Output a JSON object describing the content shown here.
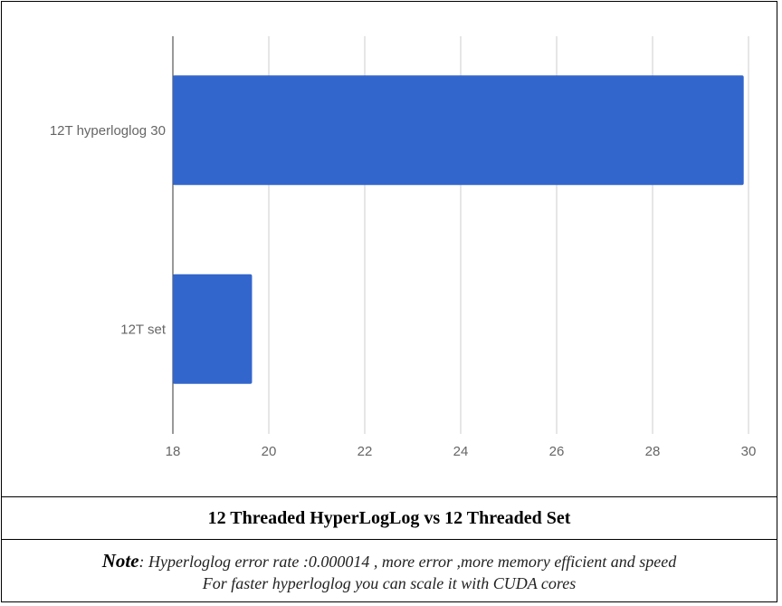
{
  "chart_data": {
    "type": "bar",
    "orientation": "horizontal",
    "categories": [
      "12T hyperloglog 30",
      "12T set"
    ],
    "values": [
      29.9,
      19.65
    ],
    "xlim": [
      18,
      30
    ],
    "xticks": [
      "18",
      "20",
      "22",
      "24",
      "26",
      "28",
      "30"
    ],
    "title": "",
    "xlabel": "",
    "ylabel": "",
    "grid": "vertical",
    "bar_color": "#3366cc",
    "grid_color": "#cccccc"
  },
  "caption": "12 Threaded HyperLogLog vs 12 Threaded Set",
  "note": {
    "key": "Note",
    "line1": ": Hyperloglog error rate :0.000014 , more error ,more memory efficient and  speed",
    "line2": "For faster hyperloglog you can scale it with CUDA cores"
  }
}
